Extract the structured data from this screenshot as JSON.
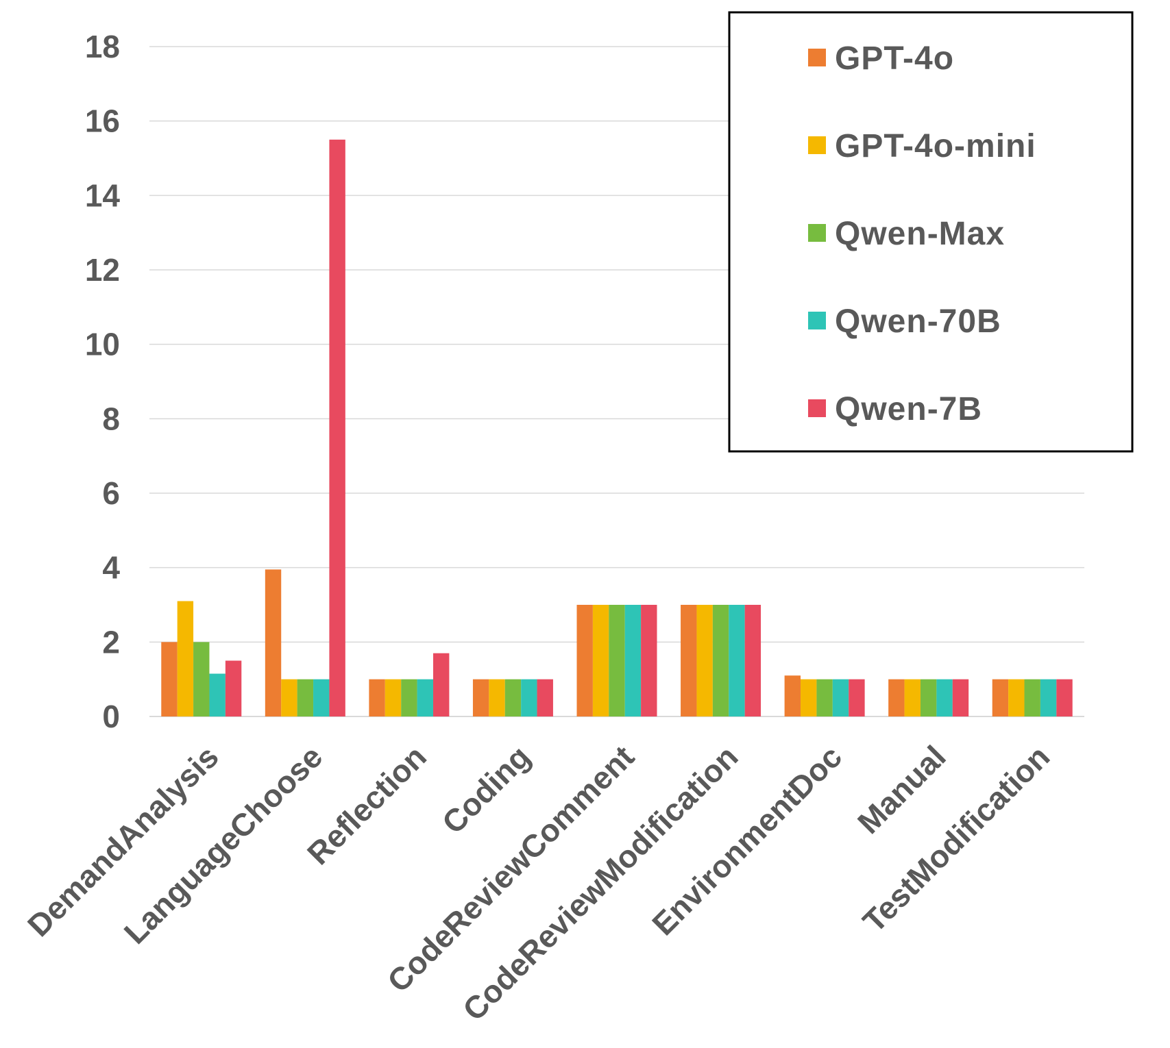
{
  "chart_data": {
    "type": "bar",
    "title": "",
    "xlabel": "",
    "ylabel": "",
    "ylim": [
      0,
      18
    ],
    "yticks": [
      0,
      2,
      4,
      6,
      8,
      10,
      12,
      14,
      16,
      18
    ],
    "grid": true,
    "legend_position": "top-right",
    "categories": [
      "DemandAnalysis",
      "LanguageChoose",
      "Reflection",
      "Coding",
      "CodeReviewComment",
      "CodeReviewModification",
      "EnvironmentDoc",
      "Manual",
      "TestModification"
    ],
    "series": [
      {
        "name": "GPT-4o",
        "color": "#ED7D31",
        "values": [
          2.0,
          3.95,
          1.0,
          1.0,
          3.0,
          3.0,
          1.1,
          1.0,
          1.0
        ]
      },
      {
        "name": "GPT-4o-mini",
        "color": "#F5B800",
        "values": [
          3.1,
          1.0,
          1.0,
          1.0,
          3.0,
          3.0,
          1.0,
          1.0,
          1.0
        ]
      },
      {
        "name": "Qwen-Max",
        "color": "#77BC3F",
        "values": [
          2.0,
          1.0,
          1.0,
          1.0,
          3.0,
          3.0,
          1.0,
          1.0,
          1.0
        ]
      },
      {
        "name": "Qwen-70B",
        "color": "#2EC4B6",
        "values": [
          1.15,
          1.0,
          1.0,
          1.0,
          3.0,
          3.0,
          1.0,
          1.0,
          1.0
        ]
      },
      {
        "name": "Qwen-7B",
        "color": "#E84A5F",
        "values": [
          1.5,
          15.5,
          1.7,
          1.0,
          3.0,
          3.0,
          1.0,
          1.0,
          1.0
        ]
      }
    ]
  }
}
